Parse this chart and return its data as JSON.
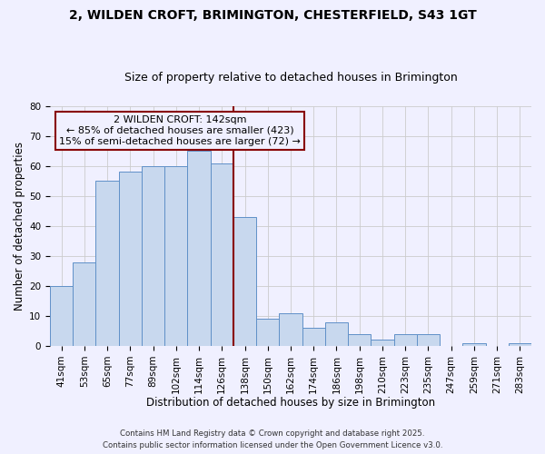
{
  "title": "2, WILDEN CROFT, BRIMINGTON, CHESTERFIELD, S43 1GT",
  "subtitle": "Size of property relative to detached houses in Brimington",
  "xlabel": "Distribution of detached houses by size in Brimington",
  "ylabel": "Number of detached properties",
  "categories": [
    "41sqm",
    "53sqm",
    "65sqm",
    "77sqm",
    "89sqm",
    "102sqm",
    "114sqm",
    "126sqm",
    "138sqm",
    "150sqm",
    "162sqm",
    "174sqm",
    "186sqm",
    "198sqm",
    "210sqm",
    "223sqm",
    "235sqm",
    "247sqm",
    "259sqm",
    "271sqm",
    "283sqm"
  ],
  "values": [
    20,
    28,
    55,
    58,
    60,
    60,
    65,
    61,
    43,
    9,
    11,
    6,
    8,
    4,
    2,
    4,
    4,
    0,
    1,
    0,
    1
  ],
  "bar_color": "#c8d8ee",
  "bar_edge_color": "#6090c8",
  "bar_width": 1.0,
  "vline_pos": 7.5,
  "vline_color": "#880000",
  "vline_label": "2 WILDEN CROFT: 142sqm",
  "annotation_line1": "← 85% of detached houses are smaller (423)",
  "annotation_line2": "15% of semi-detached houses are larger (72) →",
  "box_edge_color": "#880000",
  "ylim": [
    0,
    80
  ],
  "yticks": [
    0,
    10,
    20,
    30,
    40,
    50,
    60,
    70,
    80
  ],
  "grid_color": "#cccccc",
  "background_color": "#f0f0ff",
  "title_fontsize": 10,
  "subtitle_fontsize": 9,
  "axis_label_fontsize": 8.5,
  "tick_fontsize": 7.5,
  "annotation_fontsize": 8,
  "footer_line1": "Contains HM Land Registry data © Crown copyright and database right 2025.",
  "footer_line2": "Contains public sector information licensed under the Open Government Licence v3.0."
}
